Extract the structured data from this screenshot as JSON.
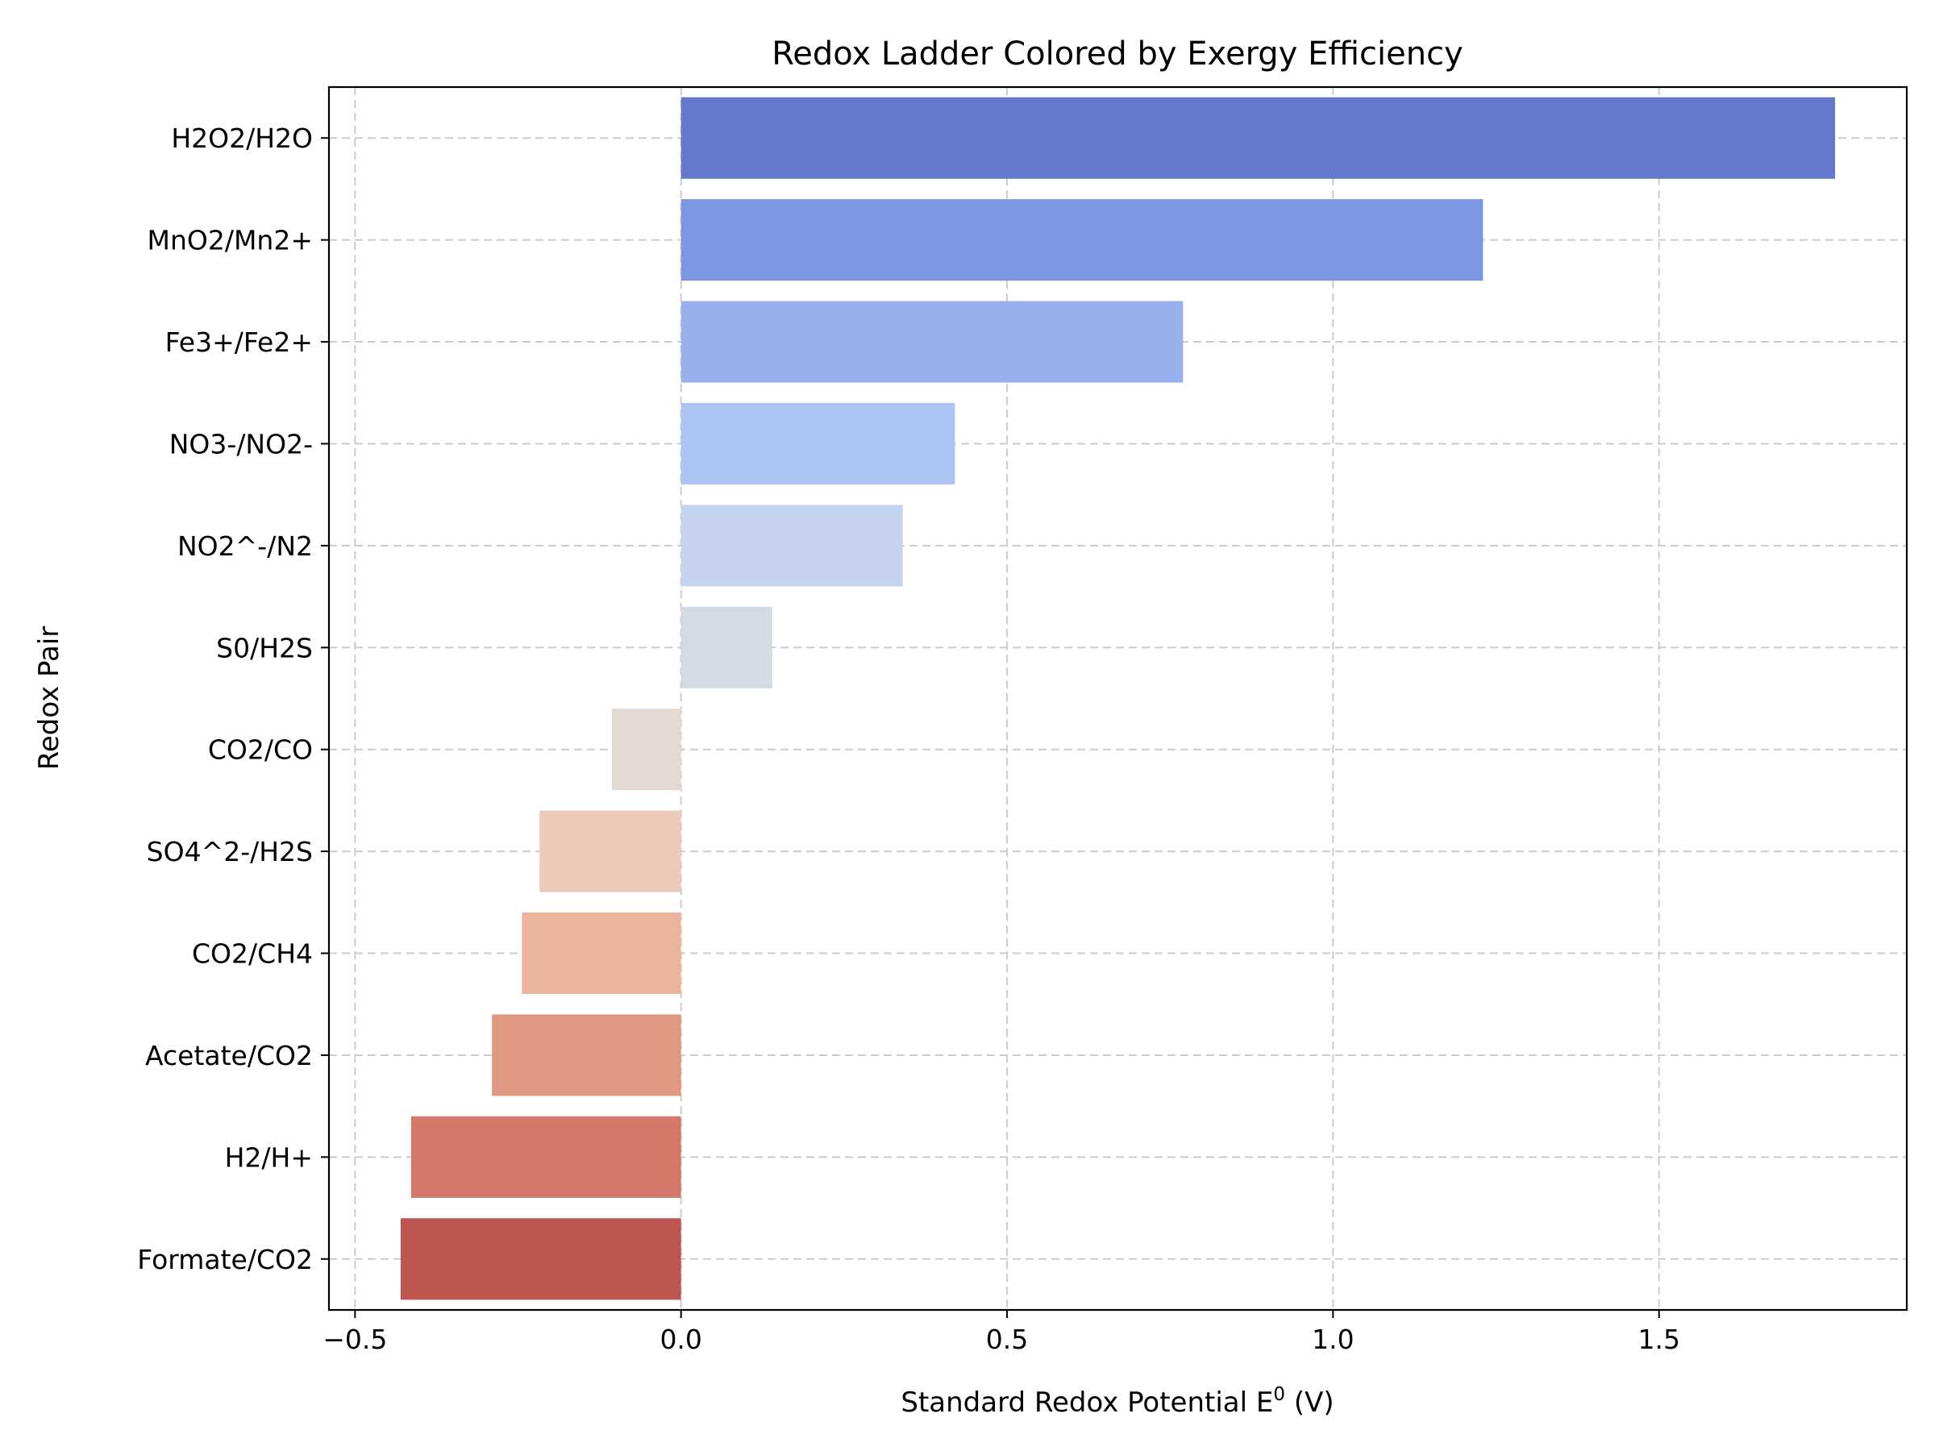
{
  "chart_data": {
    "type": "bar",
    "orientation": "horizontal",
    "title": "Redox Ladder Colored by Exergy Efficiency",
    "xlabel": "Standard Redox Potential E",
    "xlabel_superscript": "0",
    "xlabel_unit": " (V)",
    "ylabel": "Redox Pair",
    "xlim": [
      -0.54,
      1.88
    ],
    "xticks": [
      -0.5,
      0.0,
      0.5,
      1.0,
      1.5
    ],
    "xtick_labels": [
      "−0.5",
      "0.0",
      "0.5",
      "1.0",
      "1.5"
    ],
    "grid": true,
    "categories": [
      "H2O2/H2O",
      "MnO2/Mn2+",
      "Fe3+/Fe2+",
      "NO3-/NO2-",
      "NO2^-/N2",
      "S0/H2S",
      "CO2/CO",
      "SO4^2-/H2S",
      "CO2/CH4",
      "Acetate/CO2",
      "H2/H+",
      "Formate/CO2"
    ],
    "values": [
      1.77,
      1.23,
      0.77,
      0.42,
      0.34,
      0.14,
      -0.106,
      -0.217,
      -0.244,
      -0.29,
      -0.414,
      -0.43
    ],
    "colors": [
      "#6479cb",
      "#7d96e1",
      "#98b1ec",
      "#acc4f3",
      "#c5d3f0",
      "#d4dae4",
      "#e3d9d3",
      "#ecc9b9",
      "#ebb39b",
      "#e19881",
      "#d4796a",
      "#bd564f"
    ]
  }
}
